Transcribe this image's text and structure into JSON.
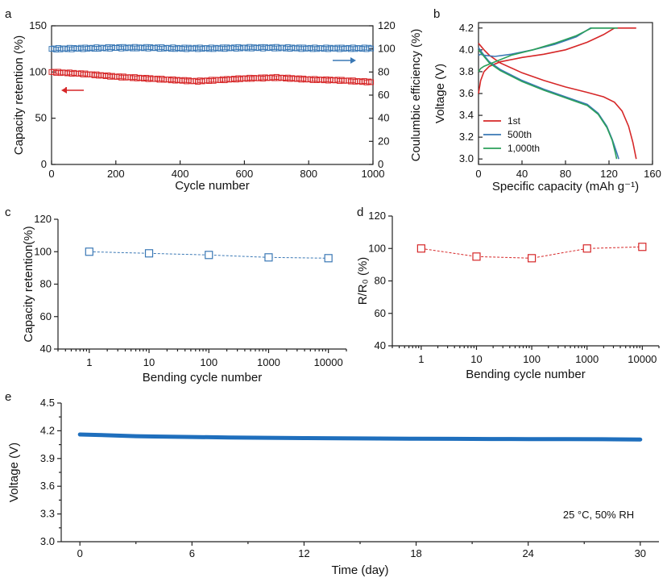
{
  "figure": {
    "panel_labels": [
      "a",
      "b",
      "c",
      "d",
      "e"
    ]
  },
  "chart_data": [
    {
      "panel": "a",
      "type": "scatter",
      "xlabel": "Cycle number",
      "ylabel": "Capacity retention (%)",
      "y2label": "Coulumbic efficiency (%)",
      "xlim": [
        0,
        1000
      ],
      "ylim": [
        0,
        150
      ],
      "y2lim": [
        0,
        120
      ],
      "xticks": [
        "0",
        "200",
        "400",
        "600",
        "800",
        "1000"
      ],
      "yticks": [
        "0",
        "50",
        "100",
        "150"
      ],
      "y2ticks": [
        "0",
        "20",
        "40",
        "60",
        "80",
        "100",
        "120"
      ],
      "series": [
        {
          "name": "Capacity retention",
          "axis": "left",
          "color": "#d62728",
          "x": [
            0,
            100,
            200,
            300,
            400,
            450,
            500,
            600,
            700,
            800,
            900,
            1000
          ],
          "y": [
            100,
            98,
            95,
            93,
            91,
            90,
            91,
            93,
            94,
            92,
            91,
            89
          ]
        },
        {
          "name": "Coulumbic efficiency",
          "axis": "right",
          "color": "#3a78b5",
          "x": [
            0,
            100,
            200,
            300,
            400,
            500,
            600,
            700,
            800,
            900,
            1000
          ],
          "y": [
            100,
            100.5,
            101,
            101,
            100.5,
            100.5,
            101,
            101,
            100.5,
            100.5,
            100.5
          ]
        }
      ],
      "arrows": [
        {
          "points_to": "left",
          "color": "#d62728"
        },
        {
          "points_to": "right",
          "color": "#3a78b5"
        }
      ]
    },
    {
      "panel": "b",
      "type": "line",
      "xlabel": "Specific capacity (mAh g⁻¹)",
      "ylabel": "Voltage (V)",
      "xlim": [
        0,
        160
      ],
      "ylim": [
        2.95,
        4.25
      ],
      "xticks": [
        "0",
        "40",
        "80",
        "120",
        "160"
      ],
      "yticks": [
        "3.0",
        "3.2",
        "3.4",
        "3.6",
        "3.8",
        "4.0",
        "4.2"
      ],
      "legend": [
        "1st",
        "500th",
        "1,000th"
      ],
      "series": [
        {
          "name": "1st",
          "color": "#d62728",
          "charge_x": [
            0,
            2,
            5,
            10,
            20,
            40,
            60,
            80,
            100,
            115,
            125,
            128,
            145
          ],
          "charge_y": [
            3.6,
            3.72,
            3.8,
            3.85,
            3.89,
            3.93,
            3.96,
            4.0,
            4.07,
            4.14,
            4.2,
            4.2,
            4.2
          ],
          "discharge_x": [
            0,
            5,
            10,
            20,
            40,
            60,
            80,
            100,
            115,
            125,
            132,
            138,
            142,
            145
          ],
          "discharge_y": [
            4.06,
            4.0,
            3.95,
            3.88,
            3.79,
            3.72,
            3.66,
            3.61,
            3.57,
            3.52,
            3.44,
            3.3,
            3.15,
            3.0
          ]
        },
        {
          "name": "500th",
          "color": "#3a78b5",
          "charge_x": [
            0,
            2,
            5,
            15,
            30,
            50,
            70,
            90,
            103,
            125
          ],
          "charge_y": [
            3.95,
            3.96,
            3.95,
            3.94,
            3.96,
            4.0,
            4.05,
            4.12,
            4.2,
            4.2
          ],
          "discharge_x": [
            0,
            5,
            10,
            20,
            40,
            60,
            80,
            100,
            110,
            118,
            123,
            127,
            129
          ],
          "discharge_y": [
            4.02,
            3.95,
            3.89,
            3.82,
            3.72,
            3.64,
            3.57,
            3.5,
            3.42,
            3.3,
            3.18,
            3.06,
            3.0
          ]
        },
        {
          "name": "1,000th",
          "color": "#2ca05a",
          "charge_x": [
            0,
            2,
            5,
            15,
            30,
            50,
            70,
            90,
            104,
            128
          ],
          "charge_y": [
            3.8,
            3.83,
            3.85,
            3.89,
            3.95,
            4.0,
            4.06,
            4.13,
            4.2,
            4.2
          ],
          "discharge_x": [
            0,
            5,
            10,
            20,
            40,
            60,
            80,
            100,
            110,
            118,
            123,
            126,
            127
          ],
          "discharge_y": [
            4.0,
            3.94,
            3.88,
            3.81,
            3.71,
            3.63,
            3.56,
            3.49,
            3.41,
            3.29,
            3.17,
            3.05,
            3.0
          ]
        }
      ]
    },
    {
      "panel": "c",
      "type": "line",
      "xscale": "log",
      "xlabel": "Bending cycle number",
      "ylabel": "Capacity retention(%)",
      "xlim": [
        0.3,
        20000
      ],
      "ylim": [
        40,
        120
      ],
      "xticks": [
        "1",
        "10",
        "100",
        "1000",
        "10000"
      ],
      "yticks": [
        "40",
        "60",
        "80",
        "100",
        "120"
      ],
      "color": "#3a78b5",
      "x": [
        1,
        10,
        100,
        1000,
        10000
      ],
      "y": [
        100,
        99,
        98,
        96.5,
        96
      ]
    },
    {
      "panel": "d",
      "type": "line",
      "xscale": "log",
      "xlabel": "Bending cycle number",
      "ylabel": "R/R₀ (%)",
      "xlim": [
        0.3,
        20000
      ],
      "ylim": [
        40,
        120
      ],
      "xticks": [
        "1",
        "10",
        "100",
        "1000",
        "10000"
      ],
      "yticks": [
        "40",
        "60",
        "80",
        "100",
        "120"
      ],
      "color": "#d62728",
      "x": [
        1,
        10,
        100,
        1000,
        10000
      ],
      "y": [
        100,
        95,
        94,
        100,
        101
      ]
    },
    {
      "panel": "e",
      "type": "line",
      "xlabel": "Time (day)",
      "ylabel": "Voltage (V)",
      "xlim": [
        -1,
        31
      ],
      "ylim": [
        3.0,
        4.5
      ],
      "xticks": [
        "0",
        "6",
        "12",
        "18",
        "24",
        "30"
      ],
      "yticks": [
        "3.0",
        "3.3",
        "3.6",
        "3.9",
        "4.2",
        "4.5"
      ],
      "annotation": "25 °C, 50% RH",
      "color": "#1f6fbd",
      "x": [
        0,
        1,
        2,
        3,
        4,
        6,
        8,
        10,
        12,
        14,
        16,
        18,
        20,
        22,
        24,
        26,
        28,
        30
      ],
      "y": [
        4.16,
        4.155,
        4.148,
        4.142,
        4.138,
        4.133,
        4.128,
        4.124,
        4.121,
        4.118,
        4.116,
        4.114,
        4.113,
        4.111,
        4.11,
        4.109,
        4.108,
        4.106
      ]
    }
  ]
}
